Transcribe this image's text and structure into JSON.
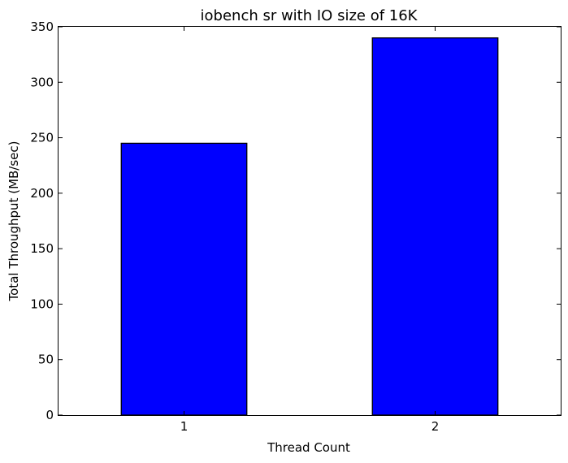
{
  "chart_data": {
    "type": "bar",
    "title": "iobench sr with IO size of 16K",
    "xlabel": "Thread Count",
    "ylabel": "Total Throughput (MB/sec)",
    "categories": [
      "1",
      "2"
    ],
    "values": [
      245,
      340
    ],
    "ylim": [
      0,
      350
    ],
    "yticks": [
      "0",
      "50",
      "100",
      "150",
      "200",
      "250",
      "300",
      "350"
    ],
    "bar_color": "#0000ff",
    "grid": false,
    "legend": "none"
  }
}
